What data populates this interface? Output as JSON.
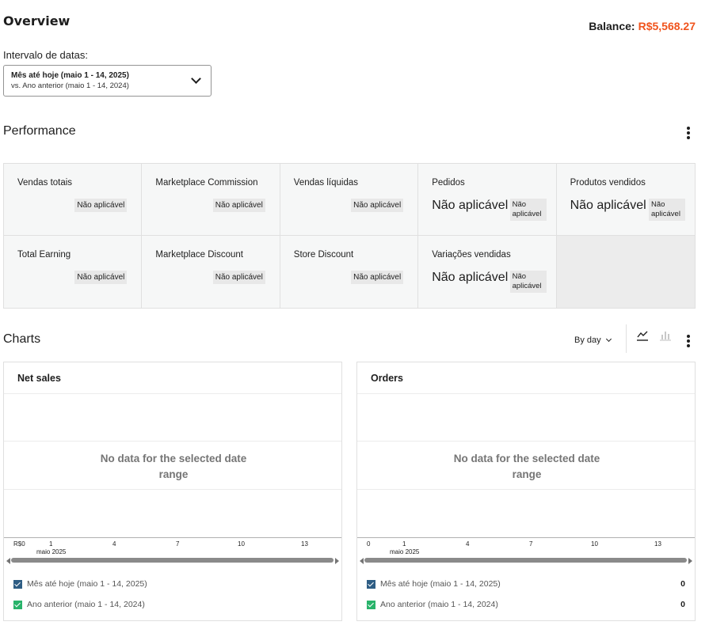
{
  "header": {
    "title": "Overview",
    "balance_label": "Balance:",
    "balance_value": "R$5,568.27",
    "balance_color": "#f0531c"
  },
  "date_range": {
    "label": "Intervalo de datas:",
    "selected_main": "Mês até hoje (maio 1 - 14, 2025)",
    "selected_sub": "vs. Ano anterior (maio 1 - 14, 2024)"
  },
  "performance": {
    "title": "Performance",
    "cells": [
      {
        "label": "Vendas totais",
        "value": "Não aplicável"
      },
      {
        "label": "Marketplace Commission",
        "value": "Não aplicável"
      },
      {
        "label": "Vendas líquidas",
        "value": "Não aplicável"
      },
      {
        "label": "Pedidos",
        "value": "Não aplicável",
        "delta": "Não aplicável"
      },
      {
        "label": "Produtos vendidos",
        "value": "Não aplicável",
        "delta": "Não aplicável"
      },
      {
        "label": "Total Earning",
        "value": "Não aplicável"
      },
      {
        "label": "Marketplace Discount",
        "value": "Não aplicável"
      },
      {
        "label": "Store Discount",
        "value": "Não aplicável"
      },
      {
        "label": "Variações vendidas",
        "value": "Não aplicável",
        "delta": "Não aplicável"
      }
    ]
  },
  "charts": {
    "title": "Charts",
    "interval": "By day",
    "line_icon": "line-chart-icon",
    "bar_icon": "bar-chart-icon",
    "cards": [
      {
        "title": "Net sales",
        "no_data_line1": "No data for the selected date",
        "no_data_line2": "range",
        "y_zero": "R$0",
        "ticks": [
          "1",
          "4",
          "7",
          "10",
          "13"
        ],
        "month": "maio 2025",
        "legend": [
          {
            "label": "Mês até hoje (maio 1 - 14, 2025)",
            "color": "#2e5d84",
            "value": ""
          },
          {
            "label": "Ano anterior (maio 1 - 14, 2024)",
            "color": "#29b36b",
            "value": ""
          }
        ]
      },
      {
        "title": "Orders",
        "no_data_line1": "No data for the selected date",
        "no_data_line2": "range",
        "y_zero": "0",
        "ticks": [
          "1",
          "4",
          "7",
          "10",
          "13"
        ],
        "month": "maio 2025",
        "legend": [
          {
            "label": "Mês até hoje (maio 1 - 14, 2025)",
            "color": "#2e5d84",
            "value": "0"
          },
          {
            "label": "Ano anterior (maio 1 - 14, 2024)",
            "color": "#29b36b",
            "value": "0"
          }
        ]
      }
    ]
  }
}
